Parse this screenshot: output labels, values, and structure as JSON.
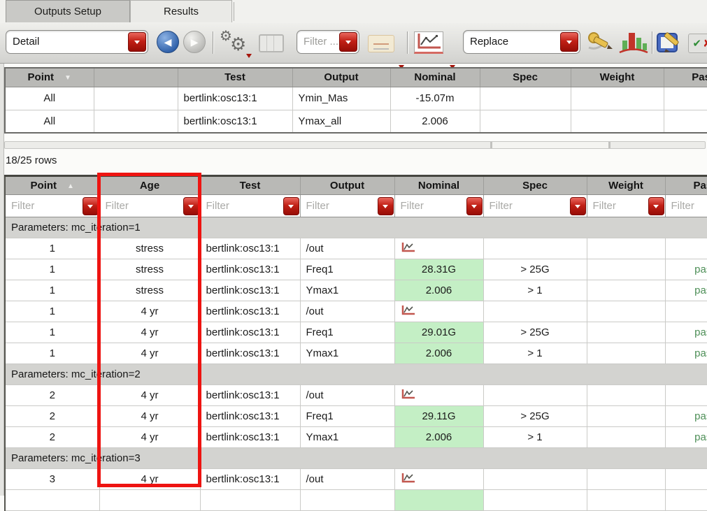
{
  "window": {
    "tabs": [
      {
        "label": "Outputs Setup",
        "active": false
      },
      {
        "label": "Results",
        "active": true
      }
    ]
  },
  "toolbar": {
    "view_select": {
      "value": "Detail"
    },
    "filter_select": {
      "value": "Filter ..."
    },
    "replace_select": {
      "value": "Replace"
    },
    "icons": [
      {
        "name": "back-icon",
        "enabled": true
      },
      {
        "name": "forward-icon",
        "enabled": false
      },
      {
        "name": "gears-settings-icon",
        "enabled": true
      },
      {
        "name": "spec-table-icon",
        "enabled": false
      },
      {
        "name": "send-to-icon",
        "enabled": false
      },
      {
        "name": "plot-chart-icon",
        "enabled": true
      },
      {
        "name": "annotate-pencil-icon",
        "enabled": true
      },
      {
        "name": "histogram-icon",
        "enabled": true
      },
      {
        "name": "edit-report-icon",
        "enabled": true
      },
      {
        "name": "pass-fail-icon",
        "enabled": true
      }
    ],
    "accent_color": "#c0140e"
  },
  "upper_table": {
    "columns": [
      "Point",
      "",
      "Test",
      "Output",
      "Nominal",
      "Spec",
      "Weight",
      "Pass"
    ],
    "sort": {
      "column": "Point",
      "direction": "desc"
    },
    "rows": [
      {
        "point": "All",
        "age": "",
        "test": "bertlink:osc13:1",
        "output": "Ymin_Mas",
        "nominal": "-15.07m",
        "spec": "",
        "weight": "",
        "pass": ""
      },
      {
        "point": "All",
        "age": "",
        "test": "bertlink:osc13:1",
        "output": "Ymax_all",
        "nominal": "2.006",
        "spec": "",
        "weight": "",
        "pass": ""
      }
    ]
  },
  "row_count": "18/25 rows",
  "lower_table": {
    "columns": [
      "Point",
      "Age",
      "Test",
      "Output",
      "Nominal",
      "Spec",
      "Weight",
      "Pass"
    ],
    "sort": {
      "column": "Point",
      "direction": "asc"
    },
    "filter_placeholder": "Filter",
    "rows": [
      {
        "type": "group",
        "label": "Parameters: mc_iteration=1"
      },
      {
        "type": "data",
        "point": "1",
        "age": "stress",
        "test": "bertlink:osc13:1",
        "output": "/out",
        "nominal": "",
        "chart": true,
        "spec": "",
        "weight": "",
        "pass": ""
      },
      {
        "type": "data",
        "point": "1",
        "age": "stress",
        "test": "bertlink:osc13:1",
        "output": "Freq1",
        "nominal": "28.31G",
        "green": true,
        "spec": "> 25G",
        "weight": "",
        "pass": "pass"
      },
      {
        "type": "data",
        "point": "1",
        "age": "stress",
        "test": "bertlink:osc13:1",
        "output": "Ymax1",
        "nominal": "2.006",
        "green": true,
        "spec": "> 1",
        "weight": "",
        "pass": "pass"
      },
      {
        "type": "data",
        "point": "1",
        "age": "4 yr",
        "test": "bertlink:osc13:1",
        "output": "/out",
        "nominal": "",
        "chart": true,
        "spec": "",
        "weight": "",
        "pass": ""
      },
      {
        "type": "data",
        "point": "1",
        "age": "4 yr",
        "test": "bertlink:osc13:1",
        "output": "Freq1",
        "nominal": "29.01G",
        "green": true,
        "spec": "> 25G",
        "weight": "",
        "pass": "pass"
      },
      {
        "type": "data",
        "point": "1",
        "age": "4 yr",
        "test": "bertlink:osc13:1",
        "output": "Ymax1",
        "nominal": "2.006",
        "green": true,
        "spec": "> 1",
        "weight": "",
        "pass": "pass"
      },
      {
        "type": "group",
        "label": "Parameters: mc_iteration=2"
      },
      {
        "type": "data",
        "point": "2",
        "age": "4 yr",
        "test": "bertlink:osc13:1",
        "output": "/out",
        "nominal": "",
        "chart": true,
        "spec": "",
        "weight": "",
        "pass": ""
      },
      {
        "type": "data",
        "point": "2",
        "age": "4 yr",
        "test": "bertlink:osc13:1",
        "output": "Freq1",
        "nominal": "29.11G",
        "green": true,
        "spec": "> 25G",
        "weight": "",
        "pass": "pass"
      },
      {
        "type": "data",
        "point": "2",
        "age": "4 yr",
        "test": "bertlink:osc13:1",
        "output": "Ymax1",
        "nominal": "2.006",
        "green": true,
        "spec": "> 1",
        "weight": "",
        "pass": "pass"
      },
      {
        "type": "group",
        "label": "Parameters: mc_iteration=3"
      },
      {
        "type": "data",
        "point": "3",
        "age": "4 yr",
        "test": "bertlink:osc13:1",
        "output": "/out",
        "nominal": "",
        "chart": true,
        "spec": "",
        "weight": "",
        "pass": ""
      },
      {
        "type": "data",
        "point": "",
        "age": "",
        "test": "",
        "output": "",
        "nominal": "",
        "green": true,
        "spec": "",
        "weight": "",
        "pass": "",
        "partial": true
      }
    ]
  },
  "annotation": {
    "highlighted_column": "Age",
    "color": "#ee1411"
  },
  "colors": {
    "nominal_pass_bg": "#c4efc5",
    "pass_text": "#4d8f57",
    "accent_red": "#c0140e"
  }
}
